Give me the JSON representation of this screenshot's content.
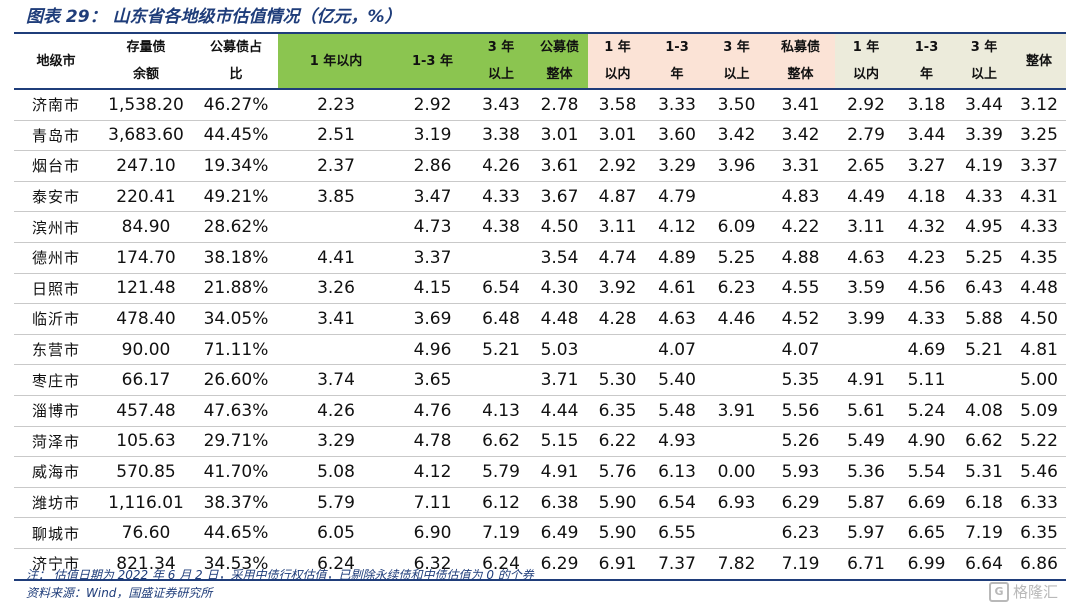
{
  "title": "图表 29： 山东省各地级市估值情况（亿元，%）",
  "header": {
    "row1": [
      "地级市",
      "存量债",
      "公募债占",
      "1 年以内",
      "1-3 年",
      "3 年",
      "公募债",
      "1 年",
      "1-3",
      "3 年",
      "私募债",
      "1 年",
      "1-3",
      "3 年",
      "整体"
    ],
    "row2": [
      "余额",
      "比",
      "以上",
      "整体",
      "以内",
      "年",
      "以上",
      "整体",
      "以内",
      "年",
      "以上"
    ]
  },
  "rows": [
    [
      "济南市",
      "1,538.20",
      "46.27%",
      "2.23",
      "2.92",
      "3.43",
      "2.78",
      "3.58",
      "3.33",
      "3.50",
      "3.41",
      "2.92",
      "3.18",
      "3.44",
      "3.12"
    ],
    [
      "青岛市",
      "3,683.60",
      "44.45%",
      "2.51",
      "3.19",
      "3.38",
      "3.01",
      "3.01",
      "3.60",
      "3.42",
      "3.42",
      "2.79",
      "3.44",
      "3.39",
      "3.25"
    ],
    [
      "烟台市",
      "247.10",
      "19.34%",
      "2.37",
      "2.86",
      "4.26",
      "3.61",
      "2.92",
      "3.29",
      "3.96",
      "3.31",
      "2.65",
      "3.27",
      "4.19",
      "3.37"
    ],
    [
      "泰安市",
      "220.41",
      "49.21%",
      "3.85",
      "3.47",
      "4.33",
      "3.67",
      "4.87",
      "4.79",
      "",
      "4.83",
      "4.49",
      "4.18",
      "4.33",
      "4.31"
    ],
    [
      "滨州市",
      "84.90",
      "28.62%",
      "",
      "4.73",
      "4.38",
      "4.50",
      "3.11",
      "4.12",
      "6.09",
      "4.22",
      "3.11",
      "4.32",
      "4.95",
      "4.33"
    ],
    [
      "德州市",
      "174.70",
      "38.18%",
      "4.41",
      "3.37",
      "",
      "3.54",
      "4.74",
      "4.89",
      "5.25",
      "4.88",
      "4.63",
      "4.23",
      "5.25",
      "4.35"
    ],
    [
      "日照市",
      "121.48",
      "21.88%",
      "3.26",
      "4.15",
      "6.54",
      "4.30",
      "3.92",
      "4.61",
      "6.23",
      "4.55",
      "3.59",
      "4.56",
      "6.43",
      "4.48"
    ],
    [
      "临沂市",
      "478.40",
      "34.05%",
      "3.41",
      "3.69",
      "6.48",
      "4.48",
      "4.28",
      "4.63",
      "4.46",
      "4.52",
      "3.99",
      "4.33",
      "5.88",
      "4.50"
    ],
    [
      "东营市",
      "90.00",
      "71.11%",
      "",
      "4.96",
      "5.21",
      "5.03",
      "",
      "4.07",
      "",
      "4.07",
      "",
      "4.69",
      "5.21",
      "4.81"
    ],
    [
      "枣庄市",
      "66.17",
      "26.60%",
      "3.74",
      "3.65",
      "",
      "3.71",
      "5.30",
      "5.40",
      "",
      "5.35",
      "4.91",
      "5.11",
      "",
      "5.00"
    ],
    [
      "淄博市",
      "457.48",
      "47.63%",
      "4.26",
      "4.76",
      "4.13",
      "4.44",
      "6.35",
      "5.48",
      "3.91",
      "5.56",
      "5.61",
      "5.24",
      "4.08",
      "5.09"
    ],
    [
      "菏泽市",
      "105.63",
      "29.71%",
      "3.29",
      "4.78",
      "6.62",
      "5.15",
      "6.22",
      "4.93",
      "",
      "5.26",
      "5.49",
      "4.90",
      "6.62",
      "5.22"
    ],
    [
      "威海市",
      "570.85",
      "41.70%",
      "5.08",
      "4.12",
      "5.79",
      "4.91",
      "5.76",
      "6.13",
      "0.00",
      "5.93",
      "5.36",
      "5.54",
      "5.31",
      "5.46"
    ],
    [
      "潍坊市",
      "1,116.01",
      "38.37%",
      "5.79",
      "7.11",
      "6.12",
      "6.38",
      "5.90",
      "6.54",
      "6.93",
      "6.29",
      "5.87",
      "6.69",
      "6.18",
      "6.33"
    ],
    [
      "聊城市",
      "76.60",
      "44.65%",
      "6.05",
      "6.90",
      "7.19",
      "6.49",
      "5.90",
      "6.55",
      "",
      "6.23",
      "5.97",
      "6.65",
      "7.19",
      "6.35"
    ],
    [
      "济宁市",
      "821.34",
      "34.53%",
      "6.24",
      "6.32",
      "6.24",
      "6.29",
      "6.91",
      "7.37",
      "7.82",
      "7.19",
      "6.71",
      "6.99",
      "6.64",
      "6.86"
    ]
  ],
  "notes": {
    "note1": "注： 估值日期为 2022 年 6 月 2 日，采用中债行权估值，已剔除永续债和中债估值为 0 的个券",
    "note2": "资料来源：Wind，国盛证券研究所"
  },
  "watermark": {
    "logo": "G",
    "text": "格隆汇"
  },
  "colors": {
    "title": "#1f3d7a",
    "public_header": "#8bc550",
    "local_header": "#fbe3d6",
    "private_header": "#ecebdb"
  }
}
